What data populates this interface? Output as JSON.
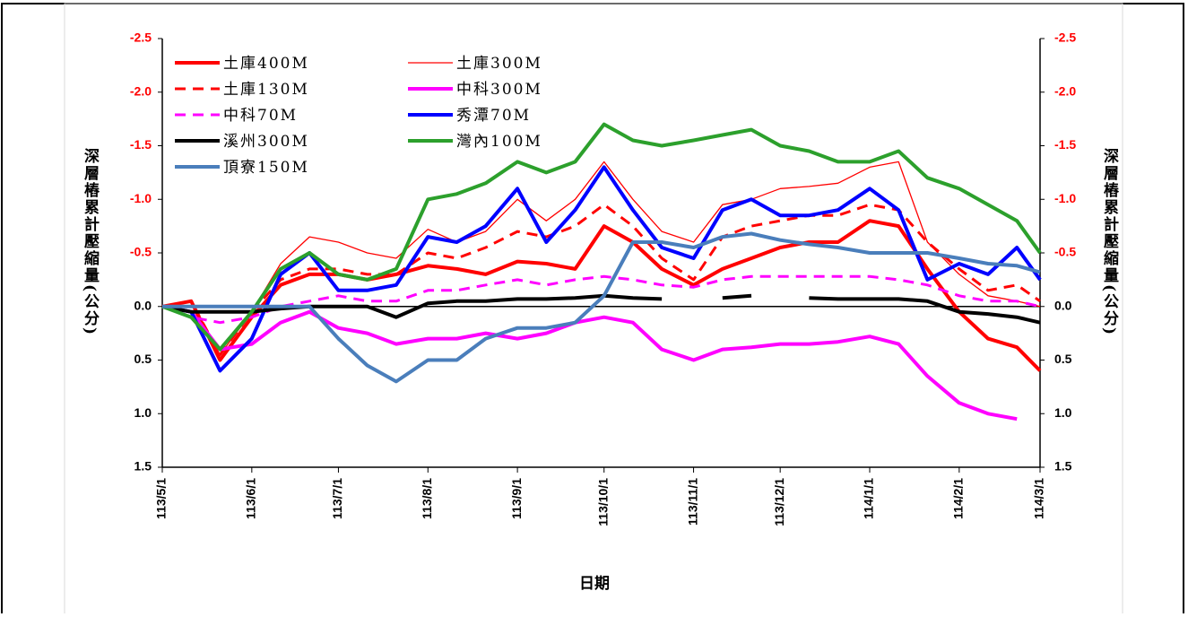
{
  "chart_data": {
    "type": "line",
    "x_label": "日期",
    "y_label": "深層樁累計壓縮量(公分)",
    "x": [
      "113/5/1",
      "113/5/11",
      "113/5/21",
      "113/6/1",
      "113/6/11",
      "113/6/21",
      "113/7/1",
      "113/7/11",
      "113/7/21",
      "113/8/1",
      "113/8/11",
      "113/8/21",
      "113/9/1",
      "113/9/11",
      "113/9/21",
      "113/10/1",
      "113/10/11",
      "113/10/21",
      "113/11/1",
      "113/11/11",
      "113/11/21",
      "113/12/1",
      "113/12/11",
      "113/12/21",
      "114/1/1",
      "114/1/11",
      "114/1/21",
      "114/2/1",
      "114/2/11",
      "114/2/21",
      "114/3/1"
    ],
    "xlim": [
      "113/5/1",
      "114/3/1"
    ],
    "xticks": [
      "113/5/1",
      "113/6/1",
      "113/7/1",
      "113/8/1",
      "113/9/1",
      "113/10/1",
      "113/11/1",
      "113/12/1",
      "114/1/1",
      "114/2/1",
      "114/3/1"
    ],
    "ylim": [
      -2.5,
      1.5
    ],
    "yticks": [
      {
        "value": -2.5,
        "label": "-2.5"
      },
      {
        "value": -2,
        "label": "-2.0"
      },
      {
        "value": -1.5,
        "label": "-1.5"
      },
      {
        "value": -1,
        "label": "-1.0"
      },
      {
        "value": -0.5,
        "label": "-0.5"
      },
      {
        "value": 0,
        "label": "0.0"
      },
      {
        "value": 0.5,
        "label": "0.5"
      },
      {
        "value": 1,
        "label": "1.0"
      },
      {
        "value": 1.5,
        "label": "1.5"
      }
    ],
    "y2lim": [
      -2.5,
      1.5
    ],
    "y2ticks": [
      {
        "value": -2.5,
        "label": "-2.5"
      },
      {
        "value": -2,
        "label": "-2.0"
      },
      {
        "value": -1.5,
        "label": "-1.5"
      },
      {
        "value": -1,
        "label": "-1.0"
      },
      {
        "value": -0.5,
        "label": "-0.5"
      },
      {
        "value": 0,
        "label": "0.0"
      },
      {
        "value": 0.5,
        "label": "0.5"
      },
      {
        "value": 1,
        "label": "1.0"
      },
      {
        "value": 1.5,
        "label": "1.5"
      }
    ],
    "negative_tick_color": "#ff0000",
    "legend": "upper-left",
    "series": [
      {
        "name": "土庫400M",
        "color": "#ff0000",
        "style": "thick",
        "values": [
          0,
          -0.05,
          0.5,
          0.1,
          -0.2,
          -0.3,
          -0.3,
          -0.25,
          -0.3,
          -0.38,
          -0.35,
          -0.3,
          -0.42,
          -0.4,
          -0.35,
          -0.75,
          -0.6,
          -0.35,
          -0.2,
          -0.35,
          -0.45,
          -0.55,
          -0.6,
          -0.6,
          -0.8,
          -0.75,
          -0.35,
          0.05,
          0.3,
          0.38,
          0.6
        ]
      },
      {
        "name": "土庫300M",
        "color": "#ff0000",
        "style": "thin",
        "values": [
          0,
          -0.05,
          0.45,
          0.05,
          -0.4,
          -0.65,
          -0.6,
          -0.5,
          -0.45,
          -0.72,
          -0.6,
          -0.7,
          -1.0,
          -0.8,
          -1.0,
          -1.35,
          -1.0,
          -0.7,
          -0.6,
          -0.95,
          -1.0,
          -1.1,
          -1.12,
          -1.15,
          -1.3,
          -1.35,
          -0.6,
          -0.3,
          -0.1,
          -0.05,
          0
        ]
      },
      {
        "name": "土庫130M",
        "color": "#ff0000",
        "style": "dashed",
        "values": [
          0,
          -0.05,
          0.45,
          0.05,
          -0.25,
          -0.35,
          -0.35,
          -0.3,
          -0.3,
          -0.5,
          -0.45,
          -0.55,
          -0.7,
          -0.65,
          -0.75,
          -0.95,
          -0.75,
          -0.45,
          -0.25,
          -0.65,
          -0.75,
          -0.8,
          -0.85,
          -0.85,
          -0.95,
          -0.9,
          -0.6,
          -0.35,
          -0.15,
          -0.2,
          -0.05
        ]
      },
      {
        "name": "中科300M",
        "color": "#ff00ff",
        "style": "thick",
        "values": [
          0,
          0.05,
          0.4,
          0.35,
          0.15,
          0.05,
          0.2,
          0.25,
          0.35,
          0.3,
          0.3,
          0.25,
          0.3,
          0.25,
          0.15,
          0.1,
          0.15,
          0.4,
          0.5,
          0.4,
          0.38,
          0.35,
          0.35,
          0.33,
          0.28,
          0.35,
          0.65,
          0.9,
          1.0,
          1.05,
          null
        ]
      },
      {
        "name": "中科70M",
        "color": "#ff00ff",
        "style": "dashed",
        "values": [
          0,
          0.1,
          0.15,
          0.1,
          0,
          -0.05,
          -0.1,
          -0.05,
          -0.05,
          -0.15,
          -0.15,
          -0.2,
          -0.25,
          -0.2,
          -0.25,
          -0.28,
          -0.25,
          -0.2,
          -0.18,
          -0.25,
          -0.28,
          -0.28,
          -0.28,
          -0.28,
          -0.28,
          -0.25,
          -0.2,
          -0.1,
          -0.05,
          -0.05,
          0
        ]
      },
      {
        "name": "秀潭70M",
        "color": "#0000ff",
        "style": "thick",
        "values": [
          0,
          0.05,
          0.6,
          0.3,
          -0.3,
          -0.5,
          -0.15,
          -0.15,
          -0.2,
          -0.65,
          -0.6,
          -0.75,
          -1.1,
          -0.6,
          -0.9,
          -1.3,
          -0.9,
          -0.55,
          -0.45,
          -0.9,
          -1.0,
          -0.85,
          -0.85,
          -0.9,
          -1.1,
          -0.9,
          -0.25,
          -0.4,
          -0.3,
          -0.55,
          -0.25
        ]
      },
      {
        "name": "溪州300M",
        "color": "#000000",
        "style": "thick",
        "values": [
          0,
          0.05,
          0.05,
          0.05,
          0.02,
          0,
          0,
          0,
          0.1,
          -0.03,
          -0.05,
          -0.05,
          -0.07,
          -0.07,
          -0.08,
          -0.1,
          -0.08,
          -0.07,
          null,
          -0.08,
          -0.1,
          null,
          -0.08,
          -0.07,
          -0.07,
          -0.07,
          -0.05,
          0.05,
          0.07,
          0.1,
          0.15
        ]
      },
      {
        "name": "灣內100M",
        "color": "#2ca02c",
        "style": "thick",
        "values": [
          0,
          0.1,
          0.4,
          0.05,
          -0.35,
          -0.5,
          -0.3,
          -0.25,
          -0.35,
          -1.0,
          -1.05,
          -1.15,
          -1.35,
          -1.25,
          -1.35,
          -1.7,
          -1.55,
          -1.5,
          -1.55,
          -1.6,
          -1.65,
          -1.5,
          -1.45,
          -1.35,
          -1.35,
          -1.45,
          -1.2,
          -1.1,
          -0.95,
          -0.8,
          -0.5
        ]
      },
      {
        "name": "頂寮150M",
        "color": "#4a7ebb",
        "style": "thick",
        "values": [
          0,
          0,
          0,
          0,
          0,
          0,
          0.3,
          0.55,
          0.7,
          0.5,
          0.5,
          0.3,
          0.2,
          0.2,
          0.15,
          -0.1,
          -0.6,
          -0.6,
          -0.55,
          -0.65,
          -0.68,
          -0.62,
          -0.58,
          -0.55,
          -0.5,
          -0.5,
          -0.5,
          -0.45,
          -0.4,
          -0.38,
          -0.32
        ]
      }
    ]
  }
}
